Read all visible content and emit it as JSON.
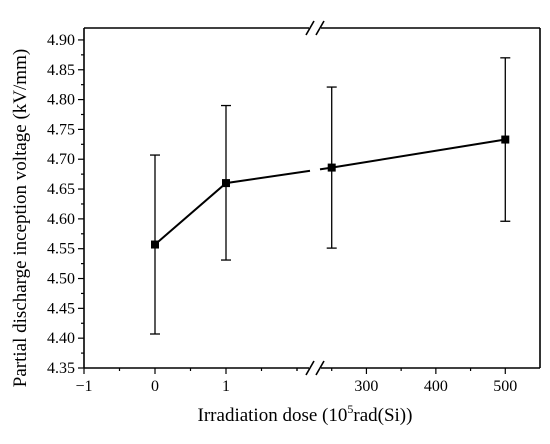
{
  "chart_data": {
    "type": "line",
    "title": "",
    "xlabel_prefix": "Irradiation dose (10",
    "xlabel_sup": "5",
    "xlabel_suffix": "rad(Si))",
    "ylabel": "Partial discharge inception voltage (kV/mm)",
    "ylim": [
      4.35,
      4.92
    ],
    "y_ticks": [
      "4.35",
      "4.40",
      "4.45",
      "4.50",
      "4.55",
      "4.60",
      "4.65",
      "4.70",
      "4.75",
      "4.80",
      "4.85",
      "4.90"
    ],
    "x_axis_break": true,
    "x_segments": [
      {
        "range": [
          -1,
          2
        ],
        "tick_labels": [
          "−1",
          "0",
          "1"
        ],
        "tick_values": [
          -1,
          0,
          1
        ]
      },
      {
        "range": [
          200,
          550
        ],
        "tick_labels": [
          "300",
          "400",
          "500"
        ],
        "tick_values": [
          300,
          400,
          500
        ]
      }
    ],
    "grid": false,
    "legend": "none",
    "series": [
      {
        "points": [
          {
            "x": 0,
            "y": 4.557,
            "err_low": 4.407,
            "err_high": 4.707
          },
          {
            "x": 1,
            "y": 4.66,
            "err_low": 4.531,
            "err_high": 4.79
          },
          {
            "x": 250,
            "y": 4.686,
            "err_low": 4.551,
            "err_high": 4.821
          },
          {
            "x": 500,
            "y": 4.733,
            "err_low": 4.596,
            "err_high": 4.87
          }
        ]
      }
    ]
  }
}
